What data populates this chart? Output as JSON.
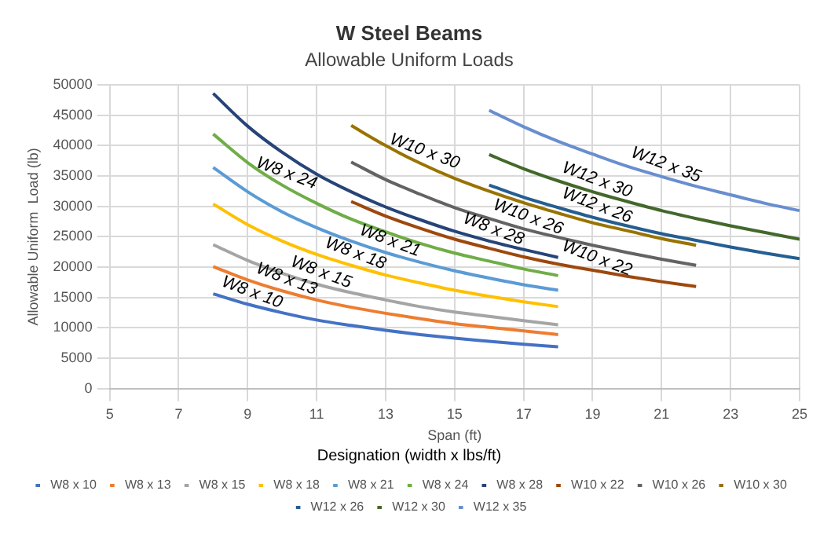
{
  "chart_data": {
    "type": "line",
    "title": "W Steel Beams",
    "subtitle": "Allowable Uniform Loads",
    "xlabel": "Span (ft)",
    "ylabel": "Allowable Uniform  Load (lb)",
    "legend_title": "Designation (width x lbs/ft)",
    "xlim": [
      5,
      25
    ],
    "xticks": [
      5,
      7,
      9,
      11,
      13,
      15,
      17,
      19,
      21,
      23,
      25
    ],
    "ylim": [
      0,
      50000
    ],
    "yticks": [
      0,
      5000,
      10000,
      15000,
      20000,
      25000,
      30000,
      35000,
      40000,
      45000,
      50000
    ],
    "grid": true,
    "legend": "bottom",
    "marker": "none",
    "line_style": "solid",
    "series": [
      {
        "name": "W8 x 10",
        "color": "#4472c4",
        "x": [
          8,
          9,
          10,
          11,
          12,
          13,
          14,
          15,
          16,
          17,
          18
        ],
        "values": [
          15600,
          13900,
          12500,
          11300,
          10400,
          9600,
          8900,
          8300,
          7800,
          7300,
          6900
        ]
      },
      {
        "name": "W8 x 13",
        "color": "#ed7d31",
        "x": [
          8,
          9,
          10,
          11,
          12,
          13,
          14,
          15,
          16,
          17,
          18
        ],
        "values": [
          20100,
          17900,
          16100,
          14600,
          13400,
          12400,
          11500,
          10700,
          10100,
          9500,
          8900
        ]
      },
      {
        "name": "W8 x 15",
        "color": "#a5a5a5",
        "x": [
          8,
          9,
          10,
          11,
          12,
          13,
          14,
          15,
          16,
          17,
          18
        ],
        "values": [
          23700,
          21100,
          19000,
          17200,
          15800,
          14600,
          13500,
          12600,
          11900,
          11200,
          10500
        ]
      },
      {
        "name": "W8 x 18",
        "color": "#ffc000",
        "x": [
          8,
          9,
          10,
          11,
          12,
          13,
          14,
          15,
          16,
          17,
          18
        ],
        "values": [
          30400,
          27000,
          24300,
          22100,
          20300,
          18700,
          17400,
          16200,
          15200,
          14300,
          13500
        ]
      },
      {
        "name": "W8 x 21",
        "color": "#5b9bd5",
        "x": [
          8,
          9,
          10,
          11,
          12,
          13,
          14,
          15,
          16,
          17,
          18
        ],
        "values": [
          36400,
          32400,
          29100,
          26500,
          24300,
          22400,
          20800,
          19400,
          18200,
          17100,
          16200
        ]
      },
      {
        "name": "W8 x 24",
        "color": "#70ad47",
        "x": [
          8,
          9,
          10,
          11,
          12,
          13,
          14,
          15,
          16,
          17,
          18
        ],
        "values": [
          41900,
          37200,
          33500,
          30500,
          27900,
          25800,
          23900,
          22300,
          21000,
          19700,
          18600
        ]
      },
      {
        "name": "W8 x 28",
        "color": "#264478",
        "x": [
          8,
          9,
          10,
          11,
          12,
          13,
          14,
          15,
          16,
          17,
          18
        ],
        "values": [
          48600,
          43200,
          38900,
          35300,
          32400,
          29900,
          27800,
          25900,
          24300,
          22900,
          21600
        ]
      },
      {
        "name": "W10 x 22",
        "color": "#9e480e",
        "x": [
          12,
          13,
          14,
          15,
          16,
          17,
          18,
          19,
          20,
          21,
          22
        ],
        "values": [
          30800,
          28400,
          26400,
          24600,
          23100,
          21700,
          20500,
          19500,
          18500,
          17600,
          16800
        ]
      },
      {
        "name": "W10 x 26",
        "color": "#636363",
        "x": [
          12,
          13,
          14,
          15,
          16,
          17,
          18,
          19,
          20,
          21,
          22
        ],
        "values": [
          37300,
          34400,
          32000,
          29800,
          28000,
          26300,
          24900,
          23600,
          22400,
          21300,
          20300
        ]
      },
      {
        "name": "W10 x 30",
        "color": "#997300",
        "x": [
          12,
          13,
          14,
          15,
          16,
          17,
          18,
          19,
          20,
          21,
          22
        ],
        "values": [
          43300,
          40000,
          37100,
          34600,
          32500,
          30600,
          28900,
          27300,
          26000,
          24700,
          23600
        ]
      },
      {
        "name": "W12 x 26",
        "color": "#255e91",
        "x": [
          16,
          17,
          18,
          19,
          20,
          21,
          22,
          23,
          24,
          25
        ],
        "values": [
          33500,
          31500,
          29800,
          28200,
          26800,
          25500,
          24400,
          23300,
          22300,
          21400
        ]
      },
      {
        "name": "W12 x 30",
        "color": "#43682b",
        "x": [
          16,
          17,
          18,
          19,
          20,
          21,
          22,
          23,
          24,
          25
        ],
        "values": [
          38500,
          36200,
          34200,
          32400,
          30800,
          29300,
          28000,
          26800,
          25700,
          24600
        ]
      },
      {
        "name": "W12 x 35",
        "color": "#698ed0",
        "x": [
          16,
          17,
          18,
          19,
          20,
          21,
          22,
          23,
          24,
          25
        ],
        "values": [
          45800,
          43100,
          40700,
          38600,
          36600,
          34900,
          33300,
          31900,
          30500,
          29300
        ]
      }
    ],
    "annotations": [
      {
        "text": "W8 x 10",
        "x": 9,
        "y": 13900
      },
      {
        "text": "W8 x 13",
        "x": 10,
        "y": 16100
      },
      {
        "text": "W8 x 15",
        "x": 11,
        "y": 17200
      },
      {
        "text": "W8 x 18",
        "x": 12,
        "y": 20300
      },
      {
        "text": "W8 x 21",
        "x": 13,
        "y": 22400
      },
      {
        "text": "W8 x 24",
        "x": 10,
        "y": 33500
      },
      {
        "text": "W8 x 28",
        "x": 16,
        "y": 24300
      },
      {
        "text": "W10 x 22",
        "x": 19,
        "y": 19500
      },
      {
        "text": "W10 x 26",
        "x": 17,
        "y": 26300
      },
      {
        "text": "W10 x 30",
        "x": 14,
        "y": 37100
      },
      {
        "text": "W12 x 26",
        "x": 19,
        "y": 28200
      },
      {
        "text": "W12 x 30",
        "x": 19,
        "y": 32400
      },
      {
        "text": "W12 x 35",
        "x": 21,
        "y": 34900
      }
    ]
  }
}
